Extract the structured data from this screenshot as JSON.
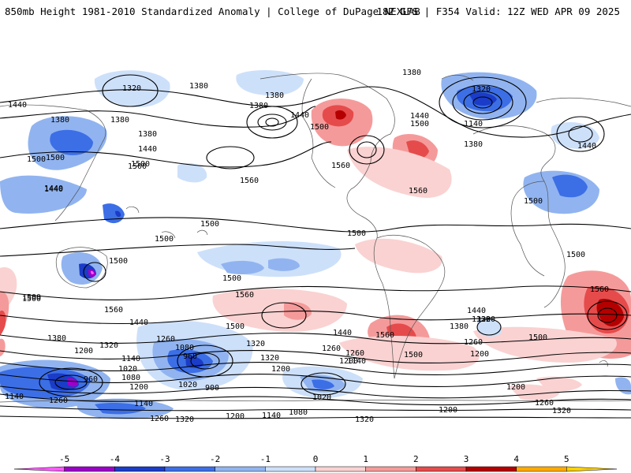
{
  "header": {
    "title_left": "850mb Height 1981-2010 Standardized Anomaly | College of DuPage NEXLAB",
    "title_right": "18Z GFS | F354 Valid: 12Z WED APR 09 2025"
  },
  "colorbar": {
    "ticks": [
      "-5",
      "-4",
      "-3",
      "-2",
      "-1",
      "0",
      "1",
      "2",
      "3",
      "4",
      "5"
    ],
    "colors": [
      "#ff5aff",
      "#9b00c8",
      "#1a3cc8",
      "#3c6ee6",
      "#91b4f0",
      "#cde0fa",
      "#fad2d2",
      "#f59a9a",
      "#e64b4b",
      "#b40000",
      "#ffaa00",
      "#ffd200"
    ]
  },
  "map": {
    "contour_labels": [
      {
        "text": "1320"
      },
      {
        "text": "1380"
      },
      {
        "text": "1440"
      },
      {
        "text": "1380"
      },
      {
        "text": "1380"
      },
      {
        "text": "1380"
      },
      {
        "text": "1500"
      },
      {
        "text": "1440"
      },
      {
        "text": "1500"
      },
      {
        "text": "1440"
      },
      {
        "text": "1560"
      },
      {
        "text": "1440"
      },
      {
        "text": "1380"
      },
      {
        "text": "1320"
      },
      {
        "text": "1140"
      },
      {
        "text": "1380"
      },
      {
        "text": "1440"
      },
      {
        "text": "1500"
      },
      {
        "text": "1380"
      },
      {
        "text": "1500"
      },
      {
        "text": "1440"
      },
      {
        "text": "1500"
      },
      {
        "text": "1560"
      },
      {
        "text": "1560"
      },
      {
        "text": "1500"
      },
      {
        "text": "1500"
      },
      {
        "text": "1500"
      },
      {
        "text": "1500"
      },
      {
        "text": "1500"
      },
      {
        "text": "1500"
      },
      {
        "text": "1500"
      },
      {
        "text": "1560"
      },
      {
        "text": "1560"
      },
      {
        "text": "1500"
      },
      {
        "text": "1560"
      },
      {
        "text": "1440"
      },
      {
        "text": "1380"
      },
      {
        "text": "1320"
      },
      {
        "text": "1200"
      },
      {
        "text": "1260"
      },
      {
        "text": "1080"
      },
      {
        "text": "960"
      },
      {
        "text": "1140"
      },
      {
        "text": "1020"
      },
      {
        "text": "1080"
      },
      {
        "text": "960"
      },
      {
        "text": "1200"
      },
      {
        "text": "1020"
      },
      {
        "text": "900"
      },
      {
        "text": "1260"
      },
      {
        "text": "1140"
      },
      {
        "text": "1260"
      },
      {
        "text": "1320"
      },
      {
        "text": "1200"
      },
      {
        "text": "1140"
      },
      {
        "text": "1080"
      },
      {
        "text": "1320"
      },
      {
        "text": "1440"
      },
      {
        "text": "1500"
      },
      {
        "text": "1320"
      },
      {
        "text": "1260"
      },
      {
        "text": "1200"
      },
      {
        "text": "1260"
      },
      {
        "text": "1200"
      },
      {
        "text": "1320"
      },
      {
        "text": "1200"
      },
      {
        "text": "1140"
      },
      {
        "text": "1260"
      },
      {
        "text": "1200"
      },
      {
        "text": "1320"
      },
      {
        "text": "1260"
      },
      {
        "text": "1320"
      },
      {
        "text": "1020"
      },
      {
        "text": "1200"
      },
      {
        "text": "1140"
      },
      {
        "text": "1560"
      },
      {
        "text": "1500"
      },
      {
        "text": "1440"
      },
      {
        "text": "1380"
      },
      {
        "text": "1320"
      },
      {
        "text": "1500"
      },
      {
        "text": "1500"
      },
      {
        "text": "1380"
      },
      {
        "text": "1440"
      },
      {
        "text": "1500"
      }
    ]
  }
}
